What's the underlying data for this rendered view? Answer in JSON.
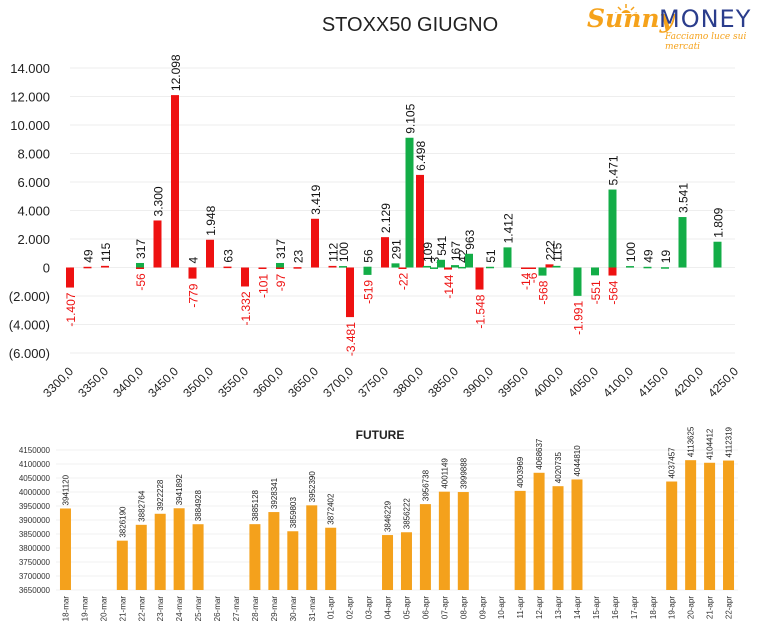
{
  "logo": {
    "sunny": "Sunny",
    "money": "MONEY",
    "tagline": "Facciamo luce sui mercati"
  },
  "chart_data": [
    {
      "type": "bar",
      "title": "STOXX50 GIUGNO",
      "xlabel": "",
      "ylabel": "",
      "ylim": [
        -6000,
        14000
      ],
      "y_ticks": [
        "(6.000)",
        "(4.000)",
        "(2.000)",
        "0",
        "2.000",
        "4.000",
        "6.000",
        "8.000",
        "10.000",
        "12.000",
        "14.000"
      ],
      "x_ticks": [
        "3300,0",
        "3350,0",
        "3400,0",
        "3450,0",
        "3500,0",
        "3550,0",
        "3600,0",
        "3650,0",
        "3700,0",
        "3750,0",
        "3800,0",
        "3850,0",
        "3900,0",
        "3950,0",
        "4000,0",
        "4050,0",
        "4100,0",
        "4150,0",
        "4200,0",
        "4250,0"
      ],
      "x_range": [
        3300,
        4250
      ],
      "grid": true,
      "colors": {
        "red": "#ee1111",
        "green": "#13ad47"
      },
      "bars": [
        {
          "x": 3300,
          "value": -1407,
          "label": "-1.407",
          "color": "red"
        },
        {
          "x": 3325,
          "value": 49,
          "label": "49",
          "color": "red"
        },
        {
          "x": 3350,
          "value": 115,
          "label": "115",
          "color": "red"
        },
        {
          "x": 3400,
          "value": 317,
          "label": "317",
          "color": "green"
        },
        {
          "x": 3400,
          "value": -56,
          "label": "-56",
          "color": "red"
        },
        {
          "x": 3425,
          "value": 3300,
          "label": "3.300",
          "color": "red"
        },
        {
          "x": 3450,
          "value": 12098,
          "label": "12.098",
          "color": "red"
        },
        {
          "x": 3475,
          "value": 4,
          "label": "4",
          "color": "red"
        },
        {
          "x": 3475,
          "value": -779,
          "label": "-779",
          "color": "red"
        },
        {
          "x": 3500,
          "value": 1948,
          "label": "1.948",
          "color": "red"
        },
        {
          "x": 3525,
          "value": 63,
          "label": "63",
          "color": "red"
        },
        {
          "x": 3550,
          "value": -1332,
          "label": "-1.332",
          "color": "red"
        },
        {
          "x": 3575,
          "value": -101,
          "label": "-101",
          "color": "red"
        },
        {
          "x": 3600,
          "value": 317,
          "label": "317",
          "color": "green"
        },
        {
          "x": 3600,
          "value": -97,
          "label": "-97",
          "color": "red"
        },
        {
          "x": 3625,
          "value": 23,
          "label": "23",
          "color": "red"
        },
        {
          "x": 3650,
          "value": 3419,
          "label": "3.419",
          "color": "red"
        },
        {
          "x": 3675,
          "value": 112,
          "label": "112",
          "color": "red"
        },
        {
          "x": 3690,
          "value": 100,
          "label": "100",
          "color": "green"
        },
        {
          "x": 3700,
          "value": -3481,
          "label": "-3.481",
          "color": "red"
        },
        {
          "x": 3725,
          "value": 56,
          "label": "56",
          "color": "green"
        },
        {
          "x": 3725,
          "value": -519,
          "label": "-519",
          "color": "green"
        },
        {
          "x": 3750,
          "value": 2129,
          "label": "2.129",
          "color": "red"
        },
        {
          "x": 3765,
          "value": 291,
          "label": "291",
          "color": "green"
        },
        {
          "x": 3775,
          "value": -22,
          "label": "-22",
          "color": "red"
        },
        {
          "x": 3785,
          "value": 9105,
          "label": "9.105",
          "color": "green"
        },
        {
          "x": 3800,
          "value": 6498,
          "label": "6.498",
          "color": "red"
        },
        {
          "x": 3810,
          "value": 109,
          "label": "109",
          "color": "green"
        },
        {
          "x": 3820,
          "value": 3,
          "label": "3",
          "color": "green"
        },
        {
          "x": 3830,
          "value": 541,
          "label": "541",
          "color": "green"
        },
        {
          "x": 3840,
          "value": -144,
          "label": "-144",
          "color": "red"
        },
        {
          "x": 3850,
          "value": 167,
          "label": "167",
          "color": "green"
        },
        {
          "x": 3860,
          "value": 42,
          "label": "42",
          "color": "green"
        },
        {
          "x": 3870,
          "value": 963,
          "label": "963",
          "color": "green"
        },
        {
          "x": 3885,
          "value": -1548,
          "label": "-1.548",
          "color": "red"
        },
        {
          "x": 3900,
          "value": 51,
          "label": "51",
          "color": "green"
        },
        {
          "x": 3925,
          "value": 1412,
          "label": "1.412",
          "color": "green"
        },
        {
          "x": 3950,
          "value": -14,
          "label": "-14",
          "color": "red"
        },
        {
          "x": 3960,
          "value": -6,
          "label": "-6",
          "color": "red"
        },
        {
          "x": 3975,
          "value": -568,
          "label": "-568",
          "color": "green"
        },
        {
          "x": 3985,
          "value": 222,
          "label": "222",
          "color": "red"
        },
        {
          "x": 3995,
          "value": 115,
          "label": "115",
          "color": "green"
        },
        {
          "x": 4025,
          "value": -1991,
          "label": "-1.991",
          "color": "green"
        },
        {
          "x": 4050,
          "value": -551,
          "label": "-551",
          "color": "green"
        },
        {
          "x": 4075,
          "value": 5471,
          "label": "5.471",
          "color": "green"
        },
        {
          "x": 4075,
          "value": -564,
          "label": "-564",
          "color": "red"
        },
        {
          "x": 4100,
          "value": 100,
          "label": "100",
          "color": "green"
        },
        {
          "x": 4125,
          "value": 49,
          "label": "49",
          "color": "green"
        },
        {
          "x": 4150,
          "value": 19,
          "label": "19",
          "color": "green"
        },
        {
          "x": 4175,
          "value": 3541,
          "label": "3.541",
          "color": "green"
        },
        {
          "x": 4225,
          "value": 1809,
          "label": "1.809",
          "color": "green"
        }
      ]
    },
    {
      "type": "bar",
      "title": "FUTURE",
      "xlabel": "",
      "ylabel": "",
      "ylim": [
        3650000,
        4150000
      ],
      "y_ticks": [
        "3650000",
        "3700000",
        "3750000",
        "3800000",
        "3850000",
        "3900000",
        "3950000",
        "4000000",
        "4050000",
        "4100000",
        "4150000"
      ],
      "color": "#f4a11c",
      "grid": true,
      "categories": [
        "18-mar",
        "19-mar",
        "20-mar",
        "21-mar",
        "22-mar",
        "23-mar",
        "24-mar",
        "25-mar",
        "26-mar",
        "27-mar",
        "28-mar",
        "29-mar",
        "30-mar",
        "31-mar",
        "01-apr",
        "02-apr",
        "03-apr",
        "04-apr",
        "05-apr",
        "06-apr",
        "07-apr",
        "08-apr",
        "09-apr",
        "10-apr",
        "11-apr",
        "12-apr",
        "13-apr",
        "14-apr",
        "15-apr",
        "16-apr",
        "17-apr",
        "18-apr",
        "19-apr",
        "20-apr",
        "21-apr",
        "22-apr"
      ],
      "values": [
        3941120,
        null,
        null,
        3826190,
        3882764,
        3922228,
        3941892,
        3884928,
        null,
        null,
        3885128,
        3928341,
        3859803,
        3952390,
        3872402,
        null,
        null,
        3846229,
        3856222,
        3956738,
        4001149,
        3999888,
        null,
        null,
        4003969,
        4068637,
        4020735,
        4044810,
        null,
        null,
        null,
        null,
        4037457,
        4113625,
        4104412,
        4112319
      ]
    }
  ]
}
